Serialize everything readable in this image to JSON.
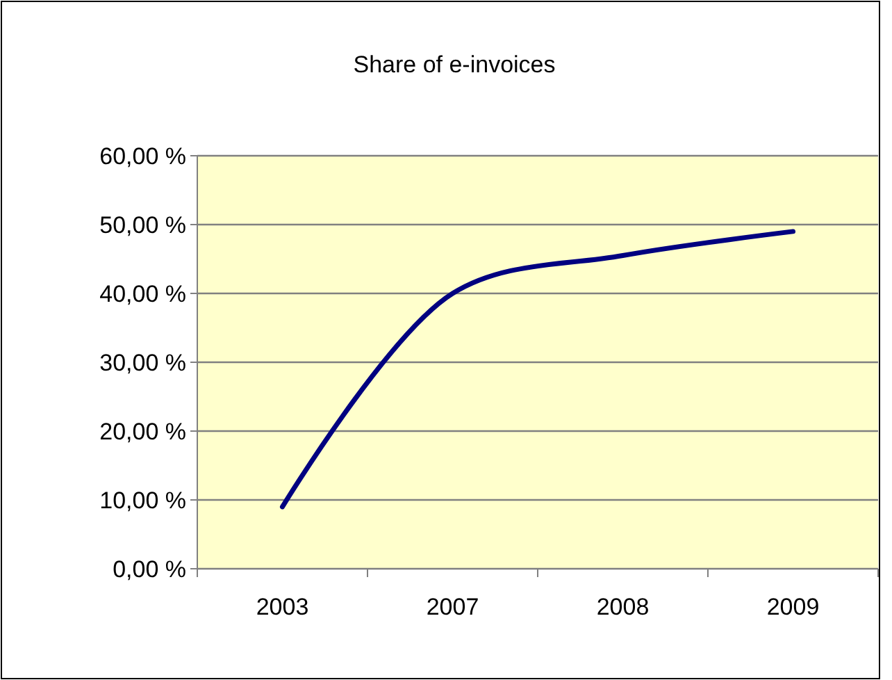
{
  "chart_data": {
    "type": "line",
    "title": "Share of e-invoices",
    "categories": [
      "2003",
      "2007",
      "2008",
      "2009"
    ],
    "series": [
      {
        "color": "#000080",
        "values": [
          9,
          40,
          45.5,
          49
        ]
      }
    ],
    "ylim": [
      0,
      60
    ],
    "yticks": [
      {
        "value": 0,
        "label": "0,00 %"
      },
      {
        "value": 10,
        "label": "10,00 %"
      },
      {
        "value": 20,
        "label": "20,00 %"
      },
      {
        "value": 30,
        "label": "30,00 %"
      },
      {
        "value": 40,
        "label": "40,00 %"
      },
      {
        "value": 50,
        "label": "50,00 %"
      },
      {
        "value": 60,
        "label": "60,00 %"
      }
    ],
    "grid": "y",
    "marker": "none"
  }
}
